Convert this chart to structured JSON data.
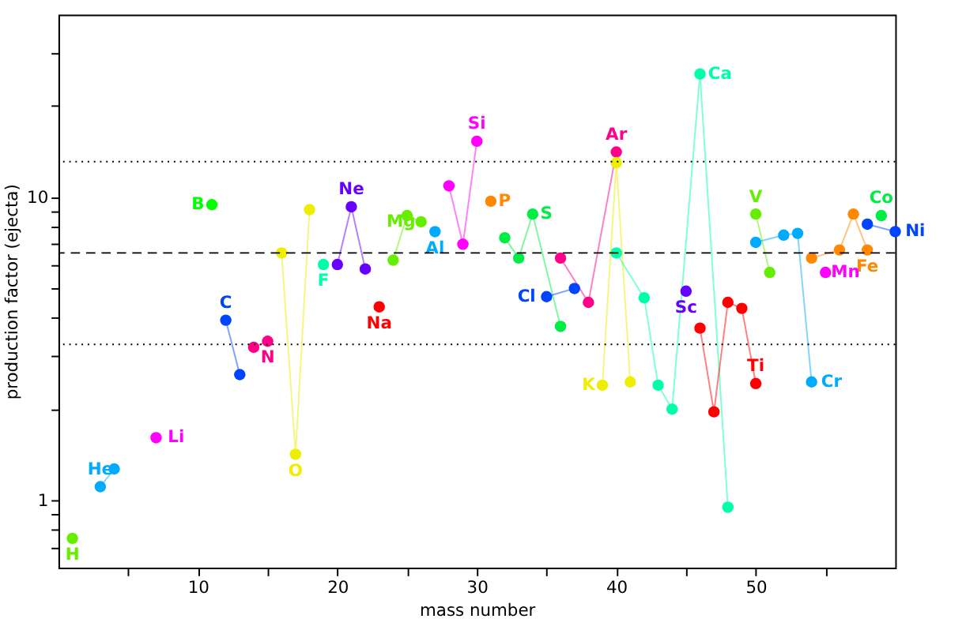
{
  "chart_data": {
    "type": "line",
    "xlabel": "mass number",
    "ylabel": "production factor (ejecta)",
    "log": "y",
    "marker": "circle",
    "line_style": "solid",
    "grid": false,
    "xlim": [
      0,
      60
    ],
    "ylim": [
      0.6,
      40
    ],
    "xticks": [
      {
        "value": 5,
        "label": null
      },
      10,
      {
        "value": 15,
        "label": null
      },
      20,
      {
        "value": 25,
        "label": null
      },
      30,
      {
        "value": 35,
        "label": null
      },
      40,
      {
        "value": 45,
        "label": null
      },
      50,
      {
        "value": 55,
        "label": null
      }
    ],
    "yticks": [
      {
        "value": 0.7,
        "label": null
      },
      {
        "value": 0.8,
        "label": null
      },
      {
        "value": 0.9,
        "label": null
      },
      1,
      {
        "value": 2,
        "label": null
      },
      {
        "value": 3,
        "label": null
      },
      {
        "value": 4,
        "label": null
      },
      {
        "value": 5,
        "label": null
      },
      {
        "value": 6,
        "label": null
      },
      {
        "value": 7,
        "label": null
      },
      {
        "value": 8,
        "label": null
      },
      {
        "value": 9,
        "label": null
      },
      10,
      {
        "value": 20,
        "label": null
      },
      {
        "value": 30,
        "label": null
      }
    ],
    "ref_lines": [
      {
        "axis": "y",
        "value": 6.55,
        "line_style": "dashed",
        "color": "#000000"
      },
      {
        "axis": "y",
        "value": 13.1,
        "line_style": "dotted",
        "color": "#000000"
      },
      {
        "axis": "y",
        "value": 3.27,
        "line_style": "dotted",
        "color": "#000000"
      }
    ],
    "series": [
      {
        "name": "H",
        "color": "#66ee00",
        "x": [
          1
        ],
        "values": [
          0.75
        ]
      },
      {
        "name": "He",
        "color": "#00aaff",
        "x": [
          3,
          4
        ],
        "values": [
          1.11,
          1.27
        ]
      },
      {
        "name": "Li",
        "color": "#ff00ff",
        "x": [
          7
        ],
        "values": [
          1.61
        ]
      },
      {
        "name": "B",
        "color": "#00ff00",
        "x": [
          11
        ],
        "values": [
          9.45
        ]
      },
      {
        "name": "C",
        "color": "#0044ff",
        "x": [
          12,
          13
        ],
        "values": [
          3.93,
          2.6
        ]
      },
      {
        "name": "N",
        "color": "#ff0088",
        "x": [
          14,
          15
        ],
        "values": [
          3.2,
          3.35
        ]
      },
      {
        "name": "O",
        "color": "#eeee00",
        "x": [
          16,
          17,
          18
        ],
        "values": [
          6.55,
          1.42,
          9.1
        ]
      },
      {
        "name": "F",
        "color": "#00ffaa",
        "x": [
          19
        ],
        "values": [
          6.0
        ]
      },
      {
        "name": "Ne",
        "color": "#6600ff",
        "x": [
          20,
          21,
          22
        ],
        "values": [
          6.0,
          9.3,
          5.8
        ]
      },
      {
        "name": "Na",
        "color": "#ff0000",
        "x": [
          23
        ],
        "values": [
          4.35
        ]
      },
      {
        "name": "Mg",
        "color": "#66ee00",
        "x": [
          24,
          25,
          26
        ],
        "values": [
          6.2,
          8.7,
          8.3
        ]
      },
      {
        "name": "Al",
        "color": "#00aaff",
        "x": [
          27
        ],
        "values": [
          7.7
        ]
      },
      {
        "name": "Si",
        "color": "#ff00ff",
        "x": [
          28,
          29,
          30
        ],
        "values": [
          10.9,
          7.0,
          15.3
        ]
      },
      {
        "name": "P",
        "color": "#ff8800",
        "x": [
          31
        ],
        "values": [
          9.7
        ]
      },
      {
        "name": "S",
        "color": "#00ee44",
        "x": [
          32,
          33,
          34,
          36
        ],
        "values": [
          7.35,
          6.3,
          8.8,
          3.75
        ]
      },
      {
        "name": "Cl",
        "color": "#0044ff",
        "x": [
          35,
          37
        ],
        "values": [
          4.7,
          5.0
        ]
      },
      {
        "name": "Ar",
        "color": "#ff0088",
        "x": [
          36,
          38,
          40
        ],
        "values": [
          6.3,
          4.5,
          14.1
        ]
      },
      {
        "name": "K",
        "color": "#eeee00",
        "x": [
          39,
          40,
          41
        ],
        "values": [
          2.4,
          13.0,
          2.46
        ]
      },
      {
        "name": "Ca",
        "color": "#00ffaa",
        "x": [
          40,
          42,
          43,
          44,
          46,
          48
        ],
        "values": [
          6.55,
          4.66,
          2.4,
          2.0,
          25.5,
          0.95
        ]
      },
      {
        "name": "Sc",
        "color": "#6600ff",
        "x": [
          45
        ],
        "values": [
          4.9
        ]
      },
      {
        "name": "Ti",
        "color": "#ff0000",
        "x": [
          46,
          47,
          48,
          49,
          50
        ],
        "values": [
          3.7,
          1.96,
          4.5,
          4.3,
          2.43
        ]
      },
      {
        "name": "V",
        "color": "#66ee00",
        "x": [
          50,
          51
        ],
        "values": [
          8.8,
          5.65
        ]
      },
      {
        "name": "Cr",
        "color": "#00aaff",
        "x": [
          50,
          52,
          53,
          54
        ],
        "values": [
          7.1,
          7.5,
          7.6,
          2.46
        ]
      },
      {
        "name": "Mn",
        "color": "#ff00ff",
        "x": [
          55
        ],
        "values": [
          5.65
        ]
      },
      {
        "name": "Fe",
        "color": "#ff8800",
        "x": [
          54,
          56,
          57,
          58
        ],
        "values": [
          6.3,
          6.7,
          8.8,
          6.7
        ]
      },
      {
        "name": "Co",
        "color": "#00ee44",
        "x": [
          59
        ],
        "values": [
          8.7
        ]
      },
      {
        "name": "Ni",
        "color": "#0044ff",
        "x": [
          58,
          60
        ],
        "values": [
          8.15,
          7.7
        ]
      }
    ]
  }
}
